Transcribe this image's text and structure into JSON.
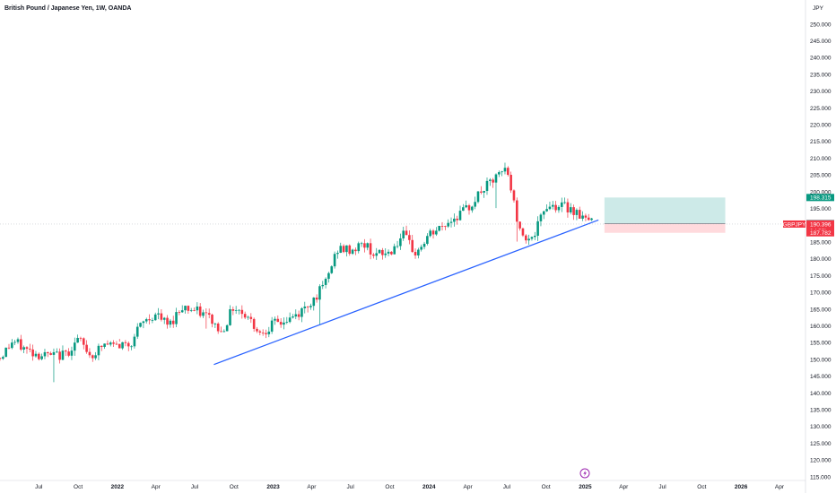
{
  "header": {
    "title": "British Pound / Japanese Yen, 1W, OANDA",
    "currency": "JPY"
  },
  "colors": {
    "up": "#089981",
    "down": "#f23645",
    "trendline": "#2962ff",
    "profit_zone": "#b2dfdb",
    "loss_zone": "#ffcdd2"
  },
  "chart_data": {
    "type": "candlestick",
    "symbol": "GBPJPY",
    "interval": "1W",
    "y_axis": {
      "min": 115,
      "max": 250,
      "ticks": [
        "115.000",
        "120.000",
        "125.000",
        "130.000",
        "135.000",
        "140.000",
        "145.000",
        "150.000",
        "155.000",
        "160.000",
        "165.000",
        "170.000",
        "175.000",
        "180.000",
        "185.000",
        "190.000",
        "195.000",
        "200.000",
        "205.000",
        "210.000",
        "215.000",
        "220.000",
        "225.000",
        "230.000",
        "235.000",
        "240.000",
        "245.000",
        "250.000"
      ]
    },
    "x_axis": {
      "range": [
        "2021-04-01",
        "2026-06-01"
      ],
      "ticks": [
        {
          "label": "Jul",
          "date": "2021-07-01",
          "year": false
        },
        {
          "label": "Oct",
          "date": "2021-10-01",
          "year": false
        },
        {
          "label": "2022",
          "date": "2022-01-01",
          "year": true
        },
        {
          "label": "Apr",
          "date": "2022-04-01",
          "year": false
        },
        {
          "label": "Jul",
          "date": "2022-07-01",
          "year": false
        },
        {
          "label": "Oct",
          "date": "2022-10-01",
          "year": false
        },
        {
          "label": "2023",
          "date": "2023-01-01",
          "year": true
        },
        {
          "label": "Apr",
          "date": "2023-04-01",
          "year": false
        },
        {
          "label": "Jul",
          "date": "2023-07-01",
          "year": false
        },
        {
          "label": "Oct",
          "date": "2023-10-01",
          "year": false
        },
        {
          "label": "2024",
          "date": "2024-01-01",
          "year": true
        },
        {
          "label": "Apr",
          "date": "2024-04-01",
          "year": false
        },
        {
          "label": "Jul",
          "date": "2024-07-01",
          "year": false
        },
        {
          "label": "Oct",
          "date": "2024-10-01",
          "year": false
        },
        {
          "label": "2025",
          "date": "2025-01-01",
          "year": true
        },
        {
          "label": "Apr",
          "date": "2025-04-01",
          "year": false
        },
        {
          "label": "Jul",
          "date": "2025-07-01",
          "year": false
        },
        {
          "label": "Oct",
          "date": "2025-10-01",
          "year": false
        },
        {
          "label": "2026",
          "date": "2026-01-01",
          "year": true
        },
        {
          "label": "Apr",
          "date": "2026-04-01",
          "year": false
        }
      ]
    },
    "close_path": [
      {
        "date": "2021-04-01",
        "close": 150.5
      },
      {
        "date": "2021-05-01",
        "close": 155.5
      },
      {
        "date": "2021-06-01",
        "close": 153.0
      },
      {
        "date": "2021-07-01",
        "close": 151.5
      },
      {
        "date": "2021-08-01",
        "close": 151.0
      },
      {
        "date": "2021-09-01",
        "close": 151.5
      },
      {
        "date": "2021-10-01",
        "close": 156.0
      },
      {
        "date": "2021-11-01",
        "close": 151.0
      },
      {
        "date": "2021-12-01",
        "close": 154.5
      },
      {
        "date": "2022-01-01",
        "close": 154.0
      },
      {
        "date": "2022-02-01",
        "close": 155.0
      },
      {
        "date": "2022-03-01",
        "close": 161.0
      },
      {
        "date": "2022-04-01",
        "close": 163.5
      },
      {
        "date": "2022-05-01",
        "close": 160.0
      },
      {
        "date": "2022-06-01",
        "close": 166.0
      },
      {
        "date": "2022-07-01",
        "close": 164.5
      },
      {
        "date": "2022-08-01",
        "close": 163.0
      },
      {
        "date": "2022-09-01",
        "close": 158.0
      },
      {
        "date": "2022-10-01",
        "close": 166.0
      },
      {
        "date": "2022-11-01",
        "close": 163.0
      },
      {
        "date": "2022-12-01",
        "close": 158.0
      },
      {
        "date": "2023-01-01",
        "close": 160.5
      },
      {
        "date": "2023-02-01",
        "close": 161.5
      },
      {
        "date": "2023-03-01",
        "close": 163.5
      },
      {
        "date": "2023-04-01",
        "close": 167.5
      },
      {
        "date": "2023-05-01",
        "close": 172.0
      },
      {
        "date": "2023-06-01",
        "close": 183.0
      },
      {
        "date": "2023-07-01",
        "close": 182.5
      },
      {
        "date": "2023-08-01",
        "close": 184.5
      },
      {
        "date": "2023-09-01",
        "close": 181.0
      },
      {
        "date": "2023-10-01",
        "close": 182.0
      },
      {
        "date": "2023-11-01",
        "close": 187.0
      },
      {
        "date": "2023-12-01",
        "close": 181.5
      },
      {
        "date": "2024-01-01",
        "close": 187.0
      },
      {
        "date": "2024-02-01",
        "close": 189.5
      },
      {
        "date": "2024-03-01",
        "close": 192.5
      },
      {
        "date": "2024-04-01",
        "close": 195.0
      },
      {
        "date": "2024-05-01",
        "close": 200.0
      },
      {
        "date": "2024-06-01",
        "close": 203.5
      },
      {
        "date": "2024-07-01",
        "close": 207.0
      },
      {
        "date": "2024-08-01",
        "close": 188.0
      },
      {
        "date": "2024-09-01",
        "close": 186.0
      },
      {
        "date": "2024-10-01",
        "close": 196.0
      },
      {
        "date": "2024-11-01",
        "close": 196.0
      },
      {
        "date": "2024-12-01",
        "close": 195.0
      },
      {
        "date": "2025-01-01",
        "close": 192.0
      },
      {
        "date": "2025-01-20",
        "close": 190.4
      }
    ],
    "trendline": {
      "from": {
        "date": "2022-08-15",
        "price": 148.5
      },
      "to": {
        "date": "2025-02-01",
        "price": 191.6
      }
    },
    "position": {
      "type": "long",
      "start_date": "2025-02-15",
      "end_date": "2025-11-25",
      "entry": 190.518,
      "target": 198.315,
      "stop": 187.782
    },
    "price_tags": [
      {
        "label": "198.315",
        "price": 198.315,
        "color": "#089981"
      },
      {
        "label": "190.518",
        "price": 190.518,
        "color": "#434651"
      },
      {
        "label": "190.396",
        "price": 190.396,
        "color": "#f23645"
      },
      {
        "label": "1d 20h",
        "price": 188.5,
        "color": "#f23645"
      },
      {
        "label": "187.782",
        "price": 187.782,
        "color": "#f23645"
      }
    ],
    "symbol_tag": {
      "label": "GBPJPY",
      "price": 190.396
    },
    "last_price": 190.396
  }
}
